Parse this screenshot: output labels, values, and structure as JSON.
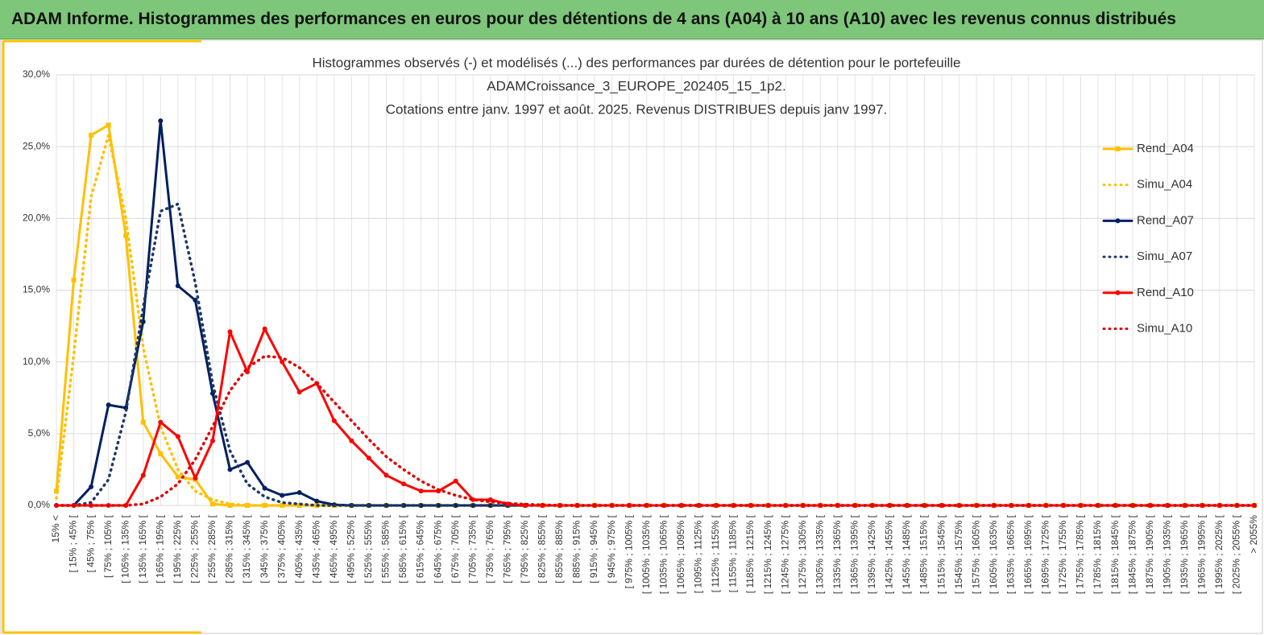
{
  "header": {
    "title": "ADAM Informe. Histogrammes des performances en euros pour des détentions de 4 ans (A04) à 10 ans (A10) avec les revenus connus distribués"
  },
  "chart_data": {
    "type": "line",
    "title_lines": [
      "Histogrammes observés (-) et modélisés (...) des performances  par durées de détention pour le portefeuille",
      "ADAMCroissance_3_EUROPE_202405_15_1p2.",
      "Cotations  entre janv. 1997 et août. 2025. Revenus DISTRIBUES depuis janv 1997."
    ],
    "categories": [
      "15% <",
      "[ 15% ; 45% [",
      "[ 45% ; 75% [",
      "[ 75% ; 105% [",
      "[ 105% ; 135% [",
      "[ 135% ; 165% [",
      "[ 165% ; 195% [",
      "[ 195% ; 225% [",
      "[ 225% ; 255% [",
      "[ 255% ; 285% [",
      "[ 285% ; 315% [",
      "[ 315% ; 345% [",
      "[ 345% ; 375% [",
      "[ 375% ; 405% [",
      "[ 405% ; 435% [",
      "[ 435% ; 465% [",
      "[ 465% ; 495% [",
      "[ 495% ; 525% [",
      "[ 525% ; 555% [",
      "[ 555% ; 585% [",
      "[ 585% ; 615% [",
      "[ 615% ; 645% [",
      "[ 645% ; 675% [",
      "[ 675% ; 705% [",
      "[ 705% ; 735% [",
      "[ 735% ; 765% [",
      "[ 765% ; 795% [",
      "[ 795% ; 825% [",
      "[ 825% ; 855% [",
      "[ 855% ; 885% [",
      "[ 885% ; 915% [",
      "[ 915% ; 945% [",
      "[ 945% ; 975% [",
      "[ 975% ; 1005% [",
      "[ 1005% ; 1035% [",
      "[ 1035% ; 1065% [",
      "[ 1065% ; 1095% [",
      "[ 1095% ; 1125% [",
      "[ 1125% ; 1155% [",
      "[ 1155% ; 1185% [",
      "[ 1185% ; 1215% [",
      "[ 1215% ; 1245% [",
      "[ 1245% ; 1275% [",
      "[ 1275% ; 1305% [",
      "[ 1305% ; 1335% [",
      "[ 1335% ; 1365% [",
      "[ 1365% ; 1395% [",
      "[ 1395% ; 1425% [",
      "[ 1425% ; 1455% [",
      "[ 1455% ; 1485% [",
      "[ 1485% ; 1515% [",
      "[ 1515% ; 1545% [",
      "[ 1545% ; 1575% [",
      "[ 1575% ; 1605% [",
      "[ 1605% ; 1635% [",
      "[ 1635% ; 1665% [",
      "[ 1665% ; 1695% [",
      "[ 1695% ; 1725% [",
      "[ 1725% ; 1755% [",
      "[ 1755% ; 1785% [",
      "[ 1785% ; 1815% [",
      "[ 1815% ; 1845% [",
      "[ 1845% ; 1875% [",
      "[ 1875% ; 1905% [",
      "[ 1905% ; 1935% [",
      "[ 1935% ; 1965% [",
      "[ 1965% ; 1995% [",
      "[ 1995% ; 2025% [",
      "[ 2025% ; 2055% [",
      "> 2055%"
    ],
    "series": [
      {
        "name": "Rend_A04",
        "color": "#ffc000",
        "style": "solid",
        "marker": "square",
        "values": [
          1.0,
          15.7,
          25.8,
          26.5,
          18.8,
          5.8,
          3.6,
          2.0,
          1.8,
          0.1,
          0,
          0,
          0,
          0,
          0,
          0,
          0,
          0,
          0,
          0,
          0,
          0,
          0,
          0,
          0,
          0,
          0,
          0,
          0,
          0,
          0,
          0,
          0,
          0,
          0,
          0,
          0,
          0,
          0,
          0,
          0,
          0,
          0,
          0,
          0,
          0,
          0,
          0,
          0,
          0,
          0,
          0,
          0,
          0,
          0,
          0,
          0,
          0,
          0,
          0,
          0,
          0,
          0,
          0,
          0,
          0,
          0,
          0,
          0,
          0
        ]
      },
      {
        "name": "Simu_A04",
        "color": "#ffc000",
        "style": "dotted",
        "values": [
          0.5,
          10.5,
          21.5,
          25.8,
          20,
          11,
          5.5,
          2.5,
          1.0,
          0.4,
          0.1,
          0,
          0,
          0,
          0,
          0,
          0,
          0,
          0,
          0,
          0,
          0,
          0,
          0,
          0,
          0,
          0,
          0,
          0,
          0,
          0,
          0,
          0,
          0,
          0,
          0,
          0,
          0,
          0,
          0,
          0,
          0,
          0,
          0,
          0,
          0,
          0,
          0,
          0,
          0,
          0,
          0,
          0,
          0,
          0,
          0,
          0,
          0,
          0,
          0,
          0,
          0,
          0,
          0,
          0,
          0,
          0,
          0,
          0,
          0
        ]
      },
      {
        "name": "Rend_A07",
        "color": "#002060",
        "style": "solid",
        "marker": "circle",
        "values": [
          0,
          0,
          1.3,
          7.0,
          6.8,
          12.8,
          26.8,
          15.3,
          14.3,
          7.8,
          2.5,
          3.0,
          1.2,
          0.7,
          0.9,
          0.3,
          0.05,
          0,
          0,
          0,
          0,
          0,
          0,
          0,
          0,
          0,
          0,
          0,
          0,
          0,
          0,
          0,
          0,
          0,
          0,
          0,
          0,
          0,
          0,
          0,
          0,
          0,
          0,
          0,
          0,
          0,
          0,
          0,
          0,
          0,
          0,
          0,
          0,
          0,
          0,
          0,
          0,
          0,
          0,
          0,
          0,
          0,
          0,
          0,
          0,
          0,
          0,
          0,
          0,
          0
        ]
      },
      {
        "name": "Simu_A07",
        "color": "#1f3864",
        "style": "dotted",
        "values": [
          0,
          0,
          0.2,
          1.8,
          6.5,
          13.8,
          20.5,
          21.0,
          15.5,
          8.5,
          3.8,
          1.5,
          0.6,
          0.2,
          0.1,
          0,
          0,
          0,
          0,
          0,
          0,
          0,
          0,
          0,
          0,
          0,
          0,
          0,
          0,
          0,
          0,
          0,
          0,
          0,
          0,
          0,
          0,
          0,
          0,
          0,
          0,
          0,
          0,
          0,
          0,
          0,
          0,
          0,
          0,
          0,
          0,
          0,
          0,
          0,
          0,
          0,
          0,
          0,
          0,
          0,
          0,
          0,
          0,
          0,
          0,
          0,
          0,
          0,
          0,
          0
        ]
      },
      {
        "name": "Rend_A10",
        "color": "#ff0000",
        "style": "solid",
        "marker": "circle",
        "values": [
          0,
          0,
          0,
          0,
          0,
          2.1,
          5.8,
          4.8,
          1.9,
          4.5,
          12.1,
          9.3,
          12.3,
          10.0,
          7.9,
          8.5,
          5.9,
          4.5,
          3.3,
          2.1,
          1.5,
          1.0,
          1.0,
          1.7,
          0.4,
          0.4,
          0.1,
          0,
          0,
          0,
          0,
          0,
          0,
          0,
          0,
          0,
          0,
          0,
          0,
          0,
          0,
          0,
          0,
          0,
          0,
          0,
          0,
          0,
          0,
          0,
          0,
          0,
          0,
          0,
          0,
          0,
          0,
          0,
          0,
          0,
          0,
          0,
          0,
          0,
          0,
          0,
          0,
          0,
          0,
          0
        ]
      },
      {
        "name": "Simu_A10",
        "color": "#e00000",
        "style": "dotted",
        "values": [
          0,
          0,
          0,
          0,
          0,
          0.1,
          0.6,
          1.5,
          3.2,
          5.5,
          8.0,
          9.6,
          10.4,
          10.3,
          9.6,
          8.5,
          7.2,
          5.9,
          4.6,
          3.4,
          2.5,
          1.7,
          1.1,
          0.7,
          0.4,
          0.25,
          0.15,
          0.08,
          0.04,
          0,
          0,
          0,
          0,
          0,
          0,
          0,
          0,
          0,
          0,
          0,
          0,
          0,
          0,
          0,
          0,
          0,
          0,
          0,
          0,
          0,
          0,
          0,
          0,
          0,
          0,
          0,
          0,
          0,
          0,
          0,
          0,
          0,
          0,
          0,
          0,
          0,
          0,
          0,
          0,
          0
        ]
      }
    ],
    "ylim": [
      0,
      30
    ],
    "yticks": [
      {
        "value": 0,
        "label": "0,0%"
      },
      {
        "value": 5,
        "label": "5,0%"
      },
      {
        "value": 10,
        "label": "10,0%"
      },
      {
        "value": 15,
        "label": "15,0%"
      },
      {
        "value": 20,
        "label": "20,0%"
      },
      {
        "value": 25,
        "label": "25,0%"
      },
      {
        "value": 30,
        "label": "30,0%"
      }
    ],
    "grid": true,
    "legend": "right"
  }
}
